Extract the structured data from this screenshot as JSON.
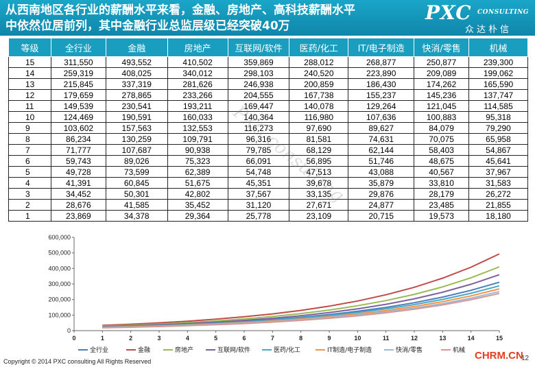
{
  "header": {
    "title_line1": "从西南地区各行业的薪酬水平来看，金融、房地产、高科技薪酬水平",
    "title_line2": "中依然位居前列，其中金融行业总监层级已经突破40万",
    "logo_main": "PXC",
    "logo_sub": "CONSULTING",
    "logo_cn": "众达朴信"
  },
  "watermark": "PXC consulting",
  "table": {
    "headers": [
      "等级",
      "全行业",
      "金融",
      "房地产",
      "互联网/软件",
      "医药/化工",
      "IT/电子制造",
      "快消/零售",
      "机械"
    ],
    "rows": [
      [
        "15",
        "311,550",
        "493,552",
        "410,502",
        "359,869",
        "288,012",
        "268,877",
        "250,877",
        "239,300"
      ],
      [
        "14",
        "259,319",
        "408,025",
        "340,012",
        "298,103",
        "240,520",
        "223,890",
        "209,089",
        "199,062"
      ],
      [
        "13",
        "215,845",
        "337,319",
        "281,626",
        "246,938",
        "200,859",
        "186,430",
        "174,262",
        "165,590"
      ],
      [
        "12",
        "179,659",
        "278,865",
        "233,266",
        "204,555",
        "167,738",
        "155,237",
        "145,236",
        "137,747"
      ],
      [
        "11",
        "149,539",
        "230,541",
        "193,211",
        "169,447",
        "140,078",
        "129,264",
        "121,045",
        "114,585"
      ],
      [
        "10",
        "124,469",
        "190,591",
        "160,033",
        "140,364",
        "116,980",
        "107,636",
        "100,883",
        "95,318"
      ],
      [
        "9",
        "103,602",
        "157,563",
        "132,553",
        "116,273",
        "97,690",
        "89,627",
        "84,079",
        "79,290"
      ],
      [
        "8",
        "86,234",
        "130,259",
        "109,791",
        "96,316",
        "81,581",
        "74,631",
        "70,075",
        "65,958"
      ],
      [
        "7",
        "71,777",
        "107,687",
        "90,938",
        "79,785",
        "68,129",
        "62,144",
        "58,403",
        "54,867"
      ],
      [
        "6",
        "59,743",
        "89,026",
        "75,323",
        "66,091",
        "56,895",
        "51,746",
        "48,675",
        "45,641"
      ],
      [
        "5",
        "49,728",
        "73,599",
        "62,389",
        "54,748",
        "47,513",
        "43,088",
        "40,567",
        "37,967"
      ],
      [
        "4",
        "41,391",
        "60,845",
        "51,675",
        "45,351",
        "39,678",
        "35,879",
        "33,810",
        "31,583"
      ],
      [
        "3",
        "34,452",
        "50,301",
        "42,802",
        "37,567",
        "33,135",
        "29,876",
        "28,179",
        "26,272"
      ],
      [
        "2",
        "28,676",
        "41,585",
        "35,452",
        "31,120",
        "27,671",
        "24,877",
        "23,485",
        "21,855"
      ],
      [
        "1",
        "23,869",
        "34,378",
        "29,364",
        "25,778",
        "23,109",
        "20,715",
        "19,573",
        "18,180"
      ]
    ]
  },
  "chart_data": {
    "type": "line",
    "x": [
      1,
      2,
      3,
      4,
      5,
      6,
      7,
      8,
      9,
      10,
      11,
      12,
      13,
      14,
      15
    ],
    "xlim": [
      0,
      15
    ],
    "ylim": [
      0,
      600000
    ],
    "xticks": [
      "0",
      "1",
      "2",
      "3",
      "4",
      "5",
      "6",
      "7",
      "8",
      "9",
      "10",
      "11",
      "12",
      "13",
      "14",
      "15"
    ],
    "yticks": [
      "0",
      "100,000",
      "200,000",
      "300,000",
      "400,000",
      "500,000",
      "600,000"
    ],
    "grid": false,
    "legend_position": "bottom",
    "series": [
      {
        "name": "全行业",
        "color": "#4a7ebb",
        "values": [
          23869,
          28676,
          34452,
          41391,
          49728,
          59743,
          71777,
          86234,
          103602,
          124469,
          149539,
          179659,
          215845,
          259319,
          311550
        ]
      },
      {
        "name": "金融",
        "color": "#be4b48",
        "values": [
          34378,
          41585,
          50301,
          60845,
          73599,
          89026,
          107687,
          130259,
          157563,
          190591,
          230541,
          278865,
          337319,
          408025,
          493552
        ]
      },
      {
        "name": "房地产",
        "color": "#98b954",
        "values": [
          29364,
          35452,
          42802,
          51675,
          62389,
          75323,
          90938,
          109791,
          132553,
          160033,
          193211,
          233266,
          281626,
          340012,
          410502
        ]
      },
      {
        "name": "互联网/软件",
        "color": "#7d60a0",
        "values": [
          25778,
          31120,
          37567,
          45351,
          54748,
          66091,
          79785,
          96316,
          116273,
          140364,
          169447,
          204555,
          246938,
          298103,
          359869
        ]
      },
      {
        "name": "医药/化工",
        "color": "#46aac5",
        "values": [
          23109,
          27671,
          33135,
          39678,
          47513,
          56895,
          68129,
          81581,
          97690,
          116980,
          140078,
          167738,
          200859,
          240520,
          288012
        ]
      },
      {
        "name": "IT制造/电子制造",
        "color": "#f69240",
        "values": [
          20715,
          24877,
          29876,
          35879,
          43088,
          51746,
          62144,
          74631,
          89627,
          107636,
          129264,
          155237,
          186430,
          223890,
          268877
        ]
      },
      {
        "name": "快消/零售",
        "color": "#9bbbd9",
        "values": [
          19573,
          23485,
          28179,
          33810,
          40567,
          48675,
          58403,
          70075,
          84079,
          100883,
          121045,
          145236,
          174262,
          209089,
          250877
        ]
      },
      {
        "name": "机械",
        "color": "#d99694",
        "values": [
          18180,
          21855,
          26272,
          31583,
          37967,
          45641,
          54867,
          65958,
          79290,
          95318,
          114585,
          137747,
          165590,
          199062,
          239300
        ]
      }
    ]
  },
  "footer": {
    "copyright": "Copyright © 2014 PXC consulting All Rights Reserved",
    "brand": "CHRM.CN",
    "page_number": "12"
  }
}
